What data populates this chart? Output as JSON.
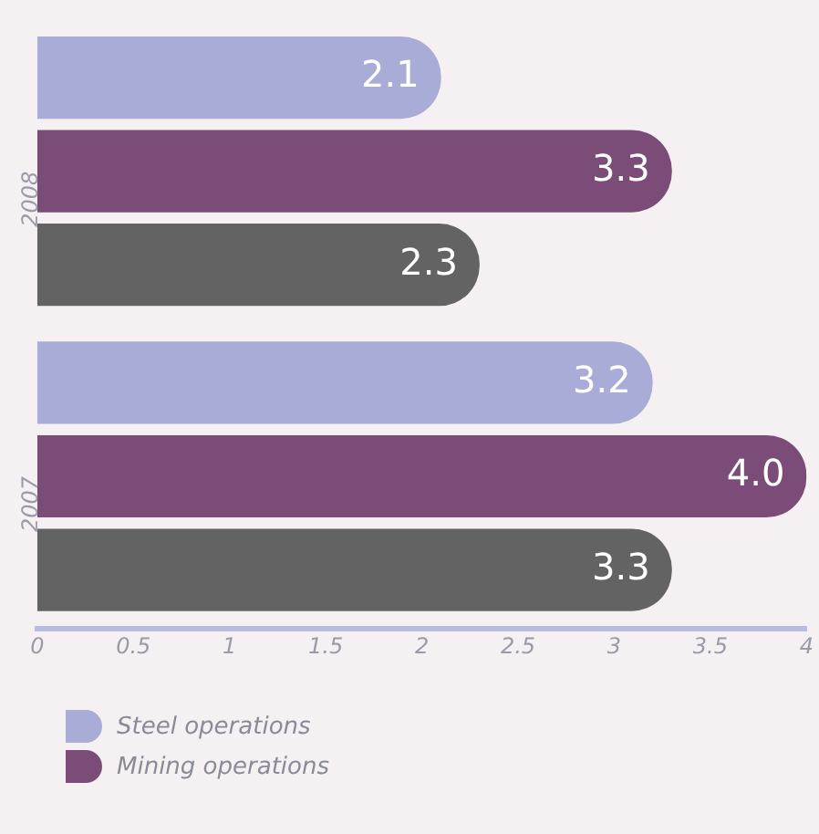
{
  "chart_data": {
    "type": "bar",
    "orientation": "horizontal",
    "categories": [
      "2008",
      "2007"
    ],
    "series": [
      {
        "name": "Steel operations",
        "color": "#aaacd8",
        "values": [
          2.1,
          3.2
        ],
        "value_labels": [
          "2.1",
          "3.2"
        ]
      },
      {
        "name": "Mining operations",
        "color": "#7b4c78",
        "values": [
          3.3,
          4.0
        ],
        "value_labels": [
          "3.3",
          "4.0"
        ]
      },
      {
        "color": "#636363",
        "values": [
          2.3,
          3.3
        ],
        "value_labels": [
          "2.3",
          "3.3"
        ]
      }
    ],
    "xlim": [
      0,
      4
    ],
    "xticks": [
      0,
      0.5,
      1,
      1.5,
      2,
      2.5,
      3,
      3.5,
      4
    ],
    "legend": "bottom left"
  }
}
